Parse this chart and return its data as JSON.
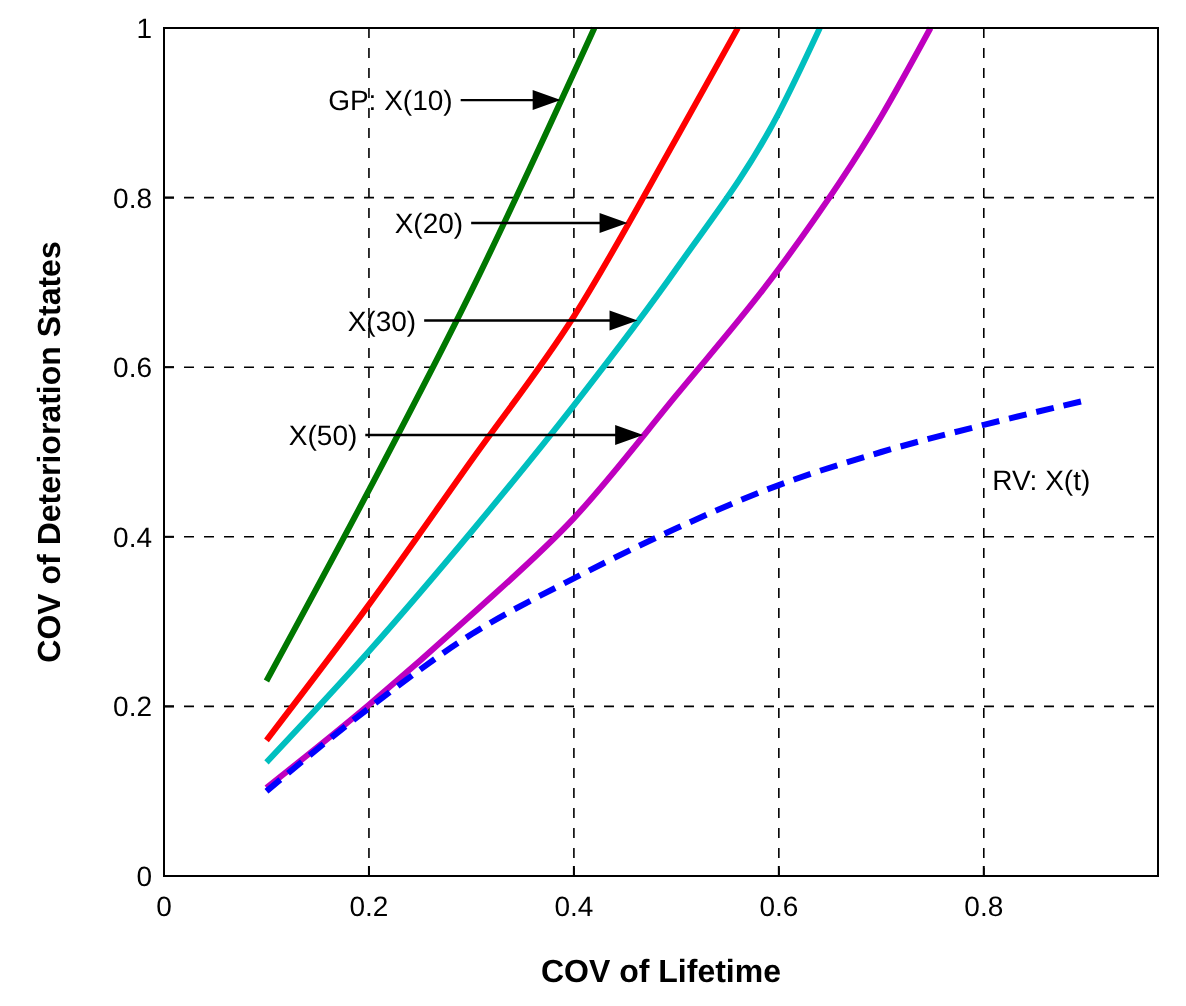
{
  "chart_data": {
    "type": "line",
    "xlabel": "COV of Lifetime",
    "ylabel": "COV of Deterioration States",
    "xlim": [
      0,
      0.97
    ],
    "xticks": [
      0,
      0.2,
      0.4,
      0.6,
      0.8
    ],
    "ylim": [
      0,
      1
    ],
    "yticks": [
      0,
      0.2,
      0.4,
      0.6,
      0.8,
      1
    ],
    "grid": true,
    "line_style": "solid",
    "series": [
      {
        "color": "#007700",
        "x": [
          0.1,
          0.2,
          0.3,
          0.42
        ],
        "values": [
          0.23,
          0.455,
          0.69,
          1.0
        ]
      },
      {
        "color": "#ff0000",
        "x": [
          0.1,
          0.2,
          0.3,
          0.4,
          0.5,
          0.56
        ],
        "values": [
          0.16,
          0.32,
          0.49,
          0.66,
          0.87,
          1.0
        ]
      },
      {
        "color": "#00bfbf",
        "x": [
          0.1,
          0.2,
          0.3,
          0.4,
          0.5,
          0.6,
          0.64
        ],
        "values": [
          0.134,
          0.265,
          0.406,
          0.555,
          0.716,
          0.9,
          1.0
        ]
      },
      {
        "color": "#bf00bf",
        "x": [
          0.1,
          0.2,
          0.3,
          0.4,
          0.5,
          0.6,
          0.7,
          0.748
        ],
        "values": [
          0.104,
          0.202,
          0.308,
          0.422,
          0.567,
          0.716,
          0.896,
          1.0
        ]
      },
      {
        "color": "#0000ff",
        "line_style": "dashed",
        "x": [
          0.1,
          0.2,
          0.3,
          0.4,
          0.5,
          0.6,
          0.7,
          0.8,
          0.9
        ],
        "values": [
          0.1,
          0.198,
          0.285,
          0.351,
          0.41,
          0.461,
          0.5,
          0.532,
          0.561
        ]
      }
    ],
    "annotations": [
      "GP: X(10)",
      "X(20)",
      "X(30)",
      "X(50)",
      "RV: X(t)"
    ]
  }
}
